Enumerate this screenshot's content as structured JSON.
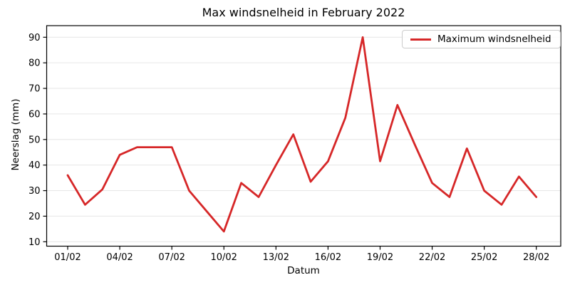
{
  "figure": {
    "title": "Max windsnelheid in February 2022",
    "xlabel": "Datum",
    "ylabel": "Neerslag (mm)"
  },
  "legend": {
    "label": "Maximum windsnelheid"
  },
  "chart_data": {
    "type": "line",
    "title": "Max windsnelheid in February 2022",
    "xlabel": "Datum",
    "ylabel": "Neerslag (mm)",
    "categories": [
      "01/02",
      "02/02",
      "03/02",
      "04/02",
      "05/02",
      "06/02",
      "07/02",
      "08/02",
      "09/02",
      "10/02",
      "11/02",
      "12/02",
      "13/02",
      "14/02",
      "15/02",
      "16/02",
      "17/02",
      "18/02",
      "19/02",
      "20/02",
      "21/02",
      "22/02",
      "23/02",
      "24/02",
      "25/02",
      "26/02",
      "27/02",
      "28/02"
    ],
    "series": [
      {
        "name": "Maximum windsnelheid",
        "color": "#d62728",
        "values": [
          36,
          24.5,
          30.5,
          44,
          47,
          47,
          47,
          30,
          22,
          14,
          33,
          27.5,
          40,
          52,
          33.5,
          41.5,
          58.5,
          90,
          41.5,
          63.5,
          48,
          33,
          27.5,
          46.5,
          30,
          24.5,
          35.5,
          27.5
        ]
      }
    ],
    "yticks": [
      10,
      20,
      30,
      40,
      50,
      60,
      70,
      80,
      90
    ],
    "ylim": [
      8.2,
      94.8
    ],
    "x_tick_labels": [
      "01/02",
      "04/02",
      "07/02",
      "10/02",
      "13/02",
      "16/02",
      "19/02",
      "22/02",
      "25/02",
      "28/02"
    ],
    "x_tick_indices": [
      0,
      3,
      6,
      9,
      12,
      15,
      18,
      21,
      24,
      27
    ],
    "grid": "horizontal",
    "legend_position": "upper right",
    "colors": {
      "line": "#d62728",
      "gridline": "#e6e6e6",
      "spine": "#000000",
      "tick_label": "#000000",
      "background": "#ffffff"
    }
  }
}
